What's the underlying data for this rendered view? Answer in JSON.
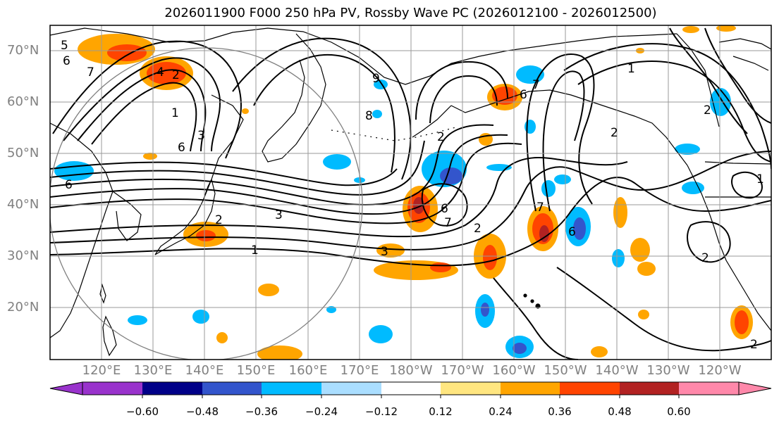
{
  "title": "2026011900 F000 250 hPa PV, Rossby Wave PC (2026012100 - 2026012500)",
  "latitude_labels": [
    "70°N",
    "60°N",
    "50°N",
    "40°N",
    "30°N",
    "20°N"
  ],
  "longitude_labels": [
    "120°E",
    "130°E",
    "140°E",
    "150°E",
    "160°E",
    "170°E",
    "180°W",
    "170°W",
    "160°W",
    "150°W",
    "140°W",
    "130°W",
    "120°W"
  ],
  "contour_labels": [
    "5",
    "6",
    "7",
    "4",
    "2",
    "1",
    "3",
    "6",
    "9",
    "8",
    "6",
    "7",
    "2",
    "1",
    "6",
    "2",
    "3",
    "6",
    "2",
    "7",
    "1",
    "3",
    "2",
    "2",
    "6",
    "1",
    "2",
    "7",
    "2"
  ],
  "colorbar": {
    "ticks": [
      "−0.60",
      "−0.48",
      "−0.36",
      "−0.24",
      "−0.12",
      "0.12",
      "0.24",
      "0.36",
      "0.48",
      "0.60"
    ],
    "colors": [
      "#9933cc",
      "#000088",
      "#3355cc",
      "#00bbff",
      "#aadeff",
      "#ffffff",
      "#ffe680",
      "#ffa500",
      "#ff4400",
      "#b22222",
      "#ff88aa"
    ]
  }
}
